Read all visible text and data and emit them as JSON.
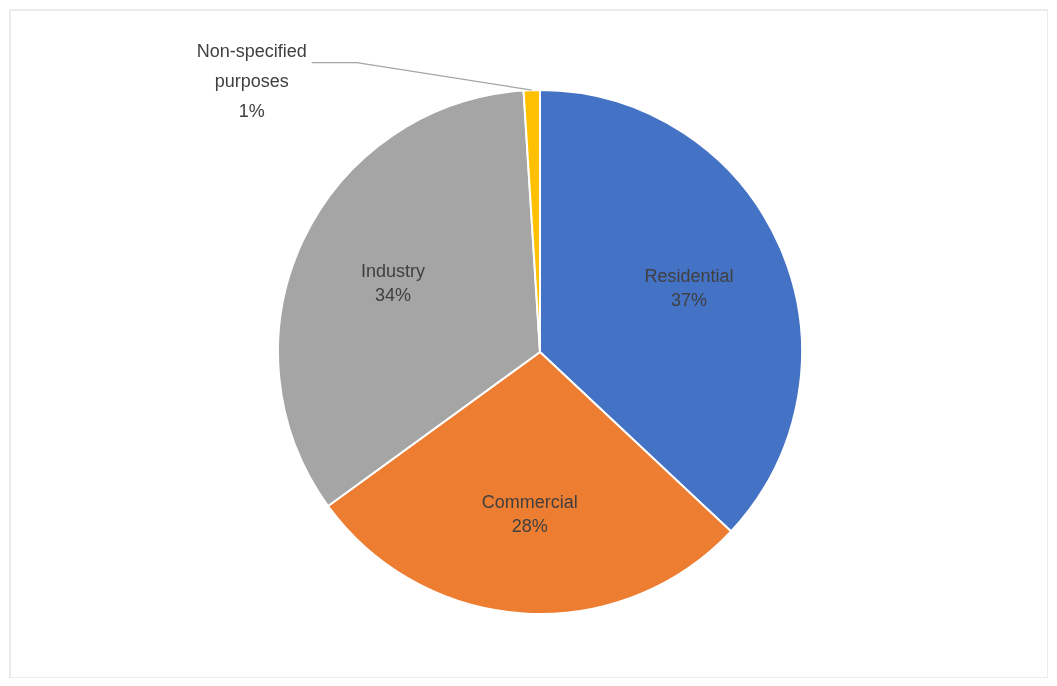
{
  "chart_data": {
    "type": "pie",
    "categories": [
      "Residential",
      "Commercial",
      "Industry",
      "Non-specified purposes"
    ],
    "values": [
      37,
      28,
      34,
      1
    ],
    "colors": [
      "#4472c4",
      "#ed7d31",
      "#a5a5a5",
      "#ffc000"
    ],
    "value_labels": [
      "37%",
      "28%",
      "34%",
      "1%"
    ]
  }
}
